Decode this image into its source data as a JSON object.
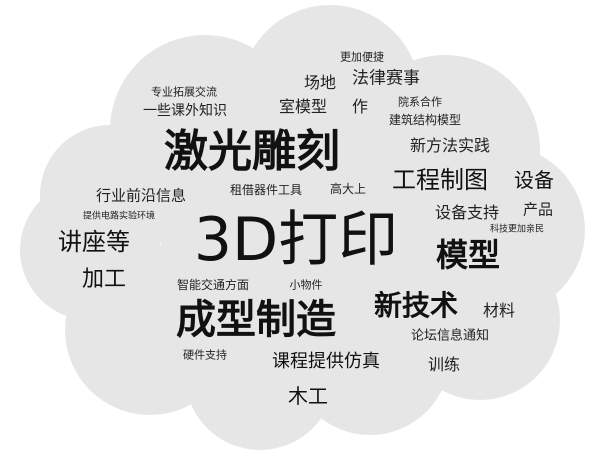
{
  "colors": {
    "cloud_fill": "#e6e6e6",
    "cloud_stroke": "#cfcfcf",
    "text_dark": "#111111",
    "text_mid": "#222222"
  },
  "words": [
    {
      "id": "w01",
      "text": "3D打印",
      "weight": 5
    },
    {
      "id": "w02",
      "text": "激光雕刻",
      "weight": 4
    },
    {
      "id": "w03",
      "text": "成型制造",
      "weight": 4
    },
    {
      "id": "w04",
      "text": "模型",
      "weight": 3
    },
    {
      "id": "w05",
      "text": "新技术",
      "weight": 3
    },
    {
      "id": "w06",
      "text": "工程制图",
      "weight": 3
    },
    {
      "id": "w07",
      "text": "讲座等",
      "weight": 2
    },
    {
      "id": "w08",
      "text": "加工",
      "weight": 2
    },
    {
      "id": "w09",
      "text": "设备",
      "weight": 2
    },
    {
      "id": "w10",
      "text": "课程提供仿真",
      "weight": 2
    },
    {
      "id": "w11",
      "text": "木工",
      "weight": 2
    },
    {
      "id": "w12",
      "text": "材料",
      "weight": 1
    },
    {
      "id": "w13",
      "text": "设备支持",
      "weight": 1
    },
    {
      "id": "w14",
      "text": "产品",
      "weight": 1
    },
    {
      "id": "w15",
      "text": "新方法实践",
      "weight": 1
    },
    {
      "id": "w16",
      "text": "法律赛事",
      "weight": 1
    },
    {
      "id": "w17",
      "text": "室模型",
      "weight": 1
    },
    {
      "id": "w18",
      "text": "场地",
      "weight": 1
    },
    {
      "id": "w19",
      "text": "作",
      "weight": 1
    },
    {
      "id": "w20",
      "text": "行业前沿信息",
      "weight": 1
    },
    {
      "id": "w21",
      "text": "训练",
      "weight": 1
    },
    {
      "id": "w22",
      "text": "论坛信息通知",
      "weight": 1
    },
    {
      "id": "w23",
      "text": "一些课外知识",
      "weight": 1
    },
    {
      "id": "w24",
      "text": "专业拓展交流",
      "weight": 1
    },
    {
      "id": "w25",
      "text": "更加便捷",
      "weight": 1
    },
    {
      "id": "w26",
      "text": "院系合作",
      "weight": 1
    },
    {
      "id": "w27",
      "text": "建筑结构模型",
      "weight": 1
    },
    {
      "id": "w28",
      "text": "租借器件工具",
      "weight": 1
    },
    {
      "id": "w29",
      "text": "高大上",
      "weight": 1
    },
    {
      "id": "w30",
      "text": "提供电路实验环境",
      "weight": 1
    },
    {
      "id": "w31",
      "text": "智能交通方面",
      "weight": 1
    },
    {
      "id": "w32",
      "text": "小物件",
      "weight": 1
    },
    {
      "id": "w33",
      "text": "硬件支持",
      "weight": 1
    },
    {
      "id": "w34",
      "text": "科技更加亲民",
      "weight": 1
    }
  ]
}
